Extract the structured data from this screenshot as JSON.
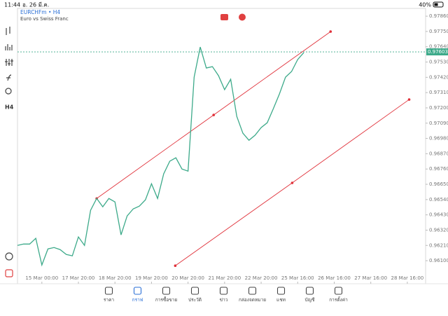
{
  "status_bar": {
    "time": "11:44",
    "date": "อ. 26 มี.ค.",
    "battery": "40%"
  },
  "chart_data": {
    "type": "line",
    "title": "EURCHFm • H4",
    "subtitle": "Euro vs Swiss Franc",
    "timeframe": "H4",
    "x": [
      0,
      1,
      2,
      3,
      4,
      5,
      6,
      7,
      8,
      9,
      10,
      11,
      12,
      13,
      14,
      15,
      16,
      17,
      18,
      19,
      20,
      21,
      22,
      23,
      24,
      25,
      26,
      27,
      28,
      29,
      30,
      31,
      32,
      33,
      34,
      35,
      36,
      37,
      38,
      39,
      40,
      41,
      42,
      43,
      44,
      45,
      46,
      47
    ],
    "series": [
      {
        "name": "EURCHFm",
        "color": "#3daa8a",
        "values": [
          0.9621,
          0.9622,
          0.9622,
          0.96261,
          0.96069,
          0.96185,
          0.96195,
          0.9618,
          0.96145,
          0.96135,
          0.96271,
          0.9621,
          0.96463,
          0.96548,
          0.96488,
          0.96548,
          0.96523,
          0.96286,
          0.96422,
          0.96473,
          0.96493,
          0.96538,
          0.96654,
          0.96548,
          0.96725,
          0.96816,
          0.96841,
          0.9676,
          0.96745,
          0.97421,
          0.97638,
          0.97487,
          0.97497,
          0.97432,
          0.97331,
          0.97406,
          0.97139,
          0.97018,
          0.96967,
          0.97003,
          0.97058,
          0.97093,
          0.97194,
          0.973,
          0.97421,
          0.97462,
          0.97548,
          0.97598
        ]
      }
    ],
    "trendlines": [
      {
        "color": "#e0313a",
        "x": [
          13,
          32.2,
          51.4
        ],
        "values": [
          0.96548,
          0.97149,
          0.97749
        ]
      },
      {
        "color": "#e0313a",
        "x": [
          25.9,
          45.1,
          64.3
        ],
        "values": [
          0.96064,
          0.9666,
          0.9726
        ]
      }
    ],
    "current_price": 0.97603,
    "xlim": [
      0,
      67
    ],
    "ylim": [
      0.95934,
      0.97926
    ],
    "xticks": [
      {
        "value": 4,
        "label": "15 Mar 00:00"
      },
      {
        "value": 10,
        "label": "17 Mar 20:00"
      },
      {
        "value": 16,
        "label": "18 Mar 20:00"
      },
      {
        "value": 22,
        "label": "19 Mar 20:00"
      },
      {
        "value": 28,
        "label": "20 Mar 20:00"
      },
      {
        "value": 34,
        "label": "21 Mar 20:00"
      },
      {
        "value": 40,
        "label": "22 Mar 20:00"
      },
      {
        "value": 46,
        "label": "25 Mar 16:00"
      },
      {
        "value": 52,
        "label": "26 Mar 16:00"
      },
      {
        "value": 58,
        "label": "27 Mar 16:00"
      },
      {
        "value": 64,
        "label": "28 Mar 16:00"
      }
    ],
    "yticks": [
      {
        "value": 0.9786,
        "label": "0.97860"
      },
      {
        "value": 0.9775,
        "label": "0.97750"
      },
      {
        "value": 0.9764,
        "label": "0.97640"
      },
      {
        "value": 0.9753,
        "label": "0.97530"
      },
      {
        "value": 0.9742,
        "label": "0.97420"
      },
      {
        "value": 0.9731,
        "label": "0.97310"
      },
      {
        "value": 0.972,
        "label": "0.97200"
      },
      {
        "value": 0.9709,
        "label": "0.97090"
      },
      {
        "value": 0.9698,
        "label": "0.96980"
      },
      {
        "value": 0.9687,
        "label": "0.96870"
      },
      {
        "value": 0.9676,
        "label": "0.96760"
      },
      {
        "value": 0.9665,
        "label": "0.96650"
      },
      {
        "value": 0.9654,
        "label": "0.96540"
      },
      {
        "value": 0.9643,
        "label": "0.96430"
      },
      {
        "value": 0.9632,
        "label": "0.96320"
      },
      {
        "value": 0.9621,
        "label": "0.96210"
      },
      {
        "value": 0.961,
        "label": "0.96100"
      }
    ]
  },
  "tab_bar": {
    "tabs": [
      "ราคา",
      "กราฟ",
      "การซื้อขาย",
      "ประวัติ",
      "ข่าว",
      "กล่องจดหมาย",
      "แชท",
      "บัญชี",
      "การตั้งค่า"
    ]
  }
}
